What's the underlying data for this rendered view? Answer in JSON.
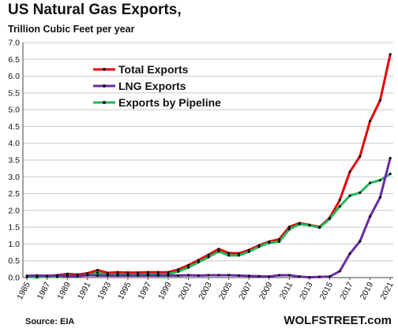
{
  "chart_data": {
    "type": "line",
    "title": "US Natural Gas Exports,",
    "subtitle": "Trillion Cubic Feet per year",
    "source": "Source: EIA",
    "brand": "WOLFSTREET.com",
    "ylim": [
      0,
      7
    ],
    "yticks": [
      "0.0",
      "0.5",
      "1.0",
      "1.5",
      "2.0",
      "2.5",
      "3.0",
      "3.5",
      "4.0",
      "4.5",
      "5.0",
      "5.5",
      "6.0",
      "6.5",
      "7.0"
    ],
    "xticks": [
      "1985",
      "1987",
      "1989",
      "1991",
      "1993",
      "1995",
      "1997",
      "1999",
      "2001",
      "2003",
      "2005",
      "2007",
      "2009",
      "2011",
      "2013",
      "2015",
      "2017",
      "2019",
      "2021"
    ],
    "grid": true,
    "legend_position": "top-left",
    "x": [
      1985,
      1986,
      1987,
      1988,
      1989,
      1990,
      1991,
      1992,
      1993,
      1994,
      1995,
      1996,
      1997,
      1998,
      1999,
      2000,
      2001,
      2002,
      2003,
      2004,
      2005,
      2006,
      2007,
      2008,
      2009,
      2010,
      2011,
      2012,
      2013,
      2014,
      2015,
      2016,
      2017,
      2018,
      2019,
      2020,
      2021
    ],
    "series": [
      {
        "name": "Total Exports",
        "color": "#e8000b",
        "values": [
          0.05,
          0.06,
          0.05,
          0.07,
          0.11,
          0.09,
          0.13,
          0.22,
          0.14,
          0.16,
          0.15,
          0.15,
          0.16,
          0.16,
          0.16,
          0.24,
          0.37,
          0.52,
          0.68,
          0.85,
          0.73,
          0.72,
          0.82,
          0.96,
          1.07,
          1.14,
          1.51,
          1.62,
          1.57,
          1.51,
          1.78,
          2.31,
          3.15,
          3.61,
          4.66,
          5.28,
          6.65
        ]
      },
      {
        "name": "LNG Exports",
        "color": "#6a2aa8",
        "values": [
          0.05,
          0.06,
          0.05,
          0.06,
          0.05,
          0.05,
          0.07,
          0.06,
          0.06,
          0.06,
          0.06,
          0.06,
          0.06,
          0.06,
          0.06,
          0.06,
          0.07,
          0.06,
          0.07,
          0.07,
          0.07,
          0.06,
          0.05,
          0.04,
          0.03,
          0.07,
          0.07,
          0.03,
          0.01,
          0.02,
          0.03,
          0.19,
          0.71,
          1.08,
          1.82,
          2.39,
          3.56
        ]
      },
      {
        "name": "Exports by Pipeline",
        "color": "#1db954",
        "values": [
          0.02,
          0.01,
          0.04,
          0.02,
          0.06,
          0.04,
          0.07,
          0.14,
          0.08,
          0.1,
          0.09,
          0.09,
          0.1,
          0.1,
          0.1,
          0.18,
          0.3,
          0.46,
          0.61,
          0.78,
          0.66,
          0.66,
          0.77,
          0.92,
          1.04,
          1.07,
          1.44,
          1.59,
          1.56,
          1.49,
          1.75,
          2.12,
          2.44,
          2.53,
          2.82,
          2.9,
          3.09
        ]
      }
    ]
  }
}
